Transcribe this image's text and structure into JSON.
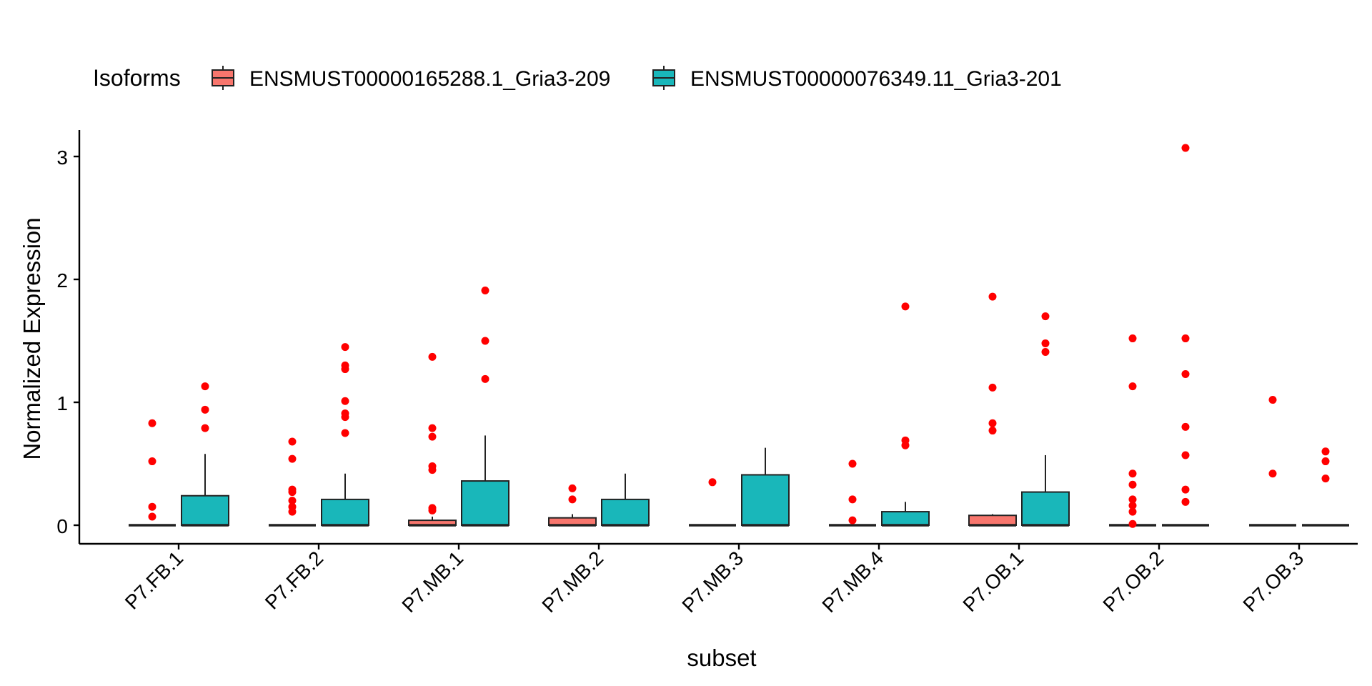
{
  "chart_data": {
    "type": "boxplot",
    "xlabel": "subset",
    "ylabel": "Normalized Expression",
    "ylim": [
      -0.15,
      3.25
    ],
    "yticks": [
      0,
      1,
      2,
      3
    ],
    "legend": {
      "title": "Isoforms",
      "position": "top"
    },
    "categories": [
      "P7.FB.1",
      "P7.FB.2",
      "P7.MB.1",
      "P7.MB.2",
      "P7.MB.3",
      "P7.MB.4",
      "P7.OB.1",
      "P7.OB.2",
      "P7.OB.3"
    ],
    "outlier_color": "#ff0000",
    "series": [
      {
        "name": "ENSMUST00000165288.1_Gria3-209",
        "color": "#f8766d",
        "boxes": [
          {
            "min": 0,
            "q1": 0,
            "median": 0,
            "q3": 0,
            "max": 0,
            "outliers": [
              0.83,
              0.52,
              0.15,
              0.07
            ]
          },
          {
            "min": 0,
            "q1": 0,
            "median": 0,
            "q3": 0,
            "max": 0,
            "outliers": [
              0.68,
              0.54,
              0.29,
              0.27,
              0.2,
              0.15,
              0.11
            ]
          },
          {
            "min": 0,
            "q1": 0,
            "median": 0,
            "q3": 0.04,
            "max": 0.07,
            "outliers": [
              1.37,
              0.79,
              0.72,
              0.48,
              0.45,
              0.14,
              0.12
            ]
          },
          {
            "min": 0,
            "q1": 0,
            "median": 0,
            "q3": 0.06,
            "max": 0.09,
            "outliers": [
              0.3,
              0.21
            ]
          },
          {
            "min": 0,
            "q1": 0,
            "median": 0,
            "q3": 0,
            "max": 0,
            "outliers": [
              0.35
            ]
          },
          {
            "min": 0,
            "q1": 0,
            "median": 0,
            "q3": 0,
            "max": 0,
            "outliers": [
              0.5,
              0.21,
              0.04
            ]
          },
          {
            "min": 0,
            "q1": 0,
            "median": 0,
            "q3": 0.08,
            "max": 0.09,
            "outliers": [
              1.86,
              1.12,
              0.83,
              0.77
            ]
          },
          {
            "min": 0,
            "q1": 0,
            "median": 0,
            "q3": 0,
            "max": 0,
            "outliers": [
              1.52,
              1.13,
              0.42,
              0.33,
              0.21,
              0.16,
              0.11,
              0.01
            ]
          },
          {
            "min": 0,
            "q1": 0,
            "median": 0,
            "q3": 0,
            "max": 0,
            "outliers": [
              1.02,
              0.42
            ]
          }
        ]
      },
      {
        "name": "ENSMUST00000076349.11_Gria3-201",
        "color": "#19b7ba",
        "boxes": [
          {
            "min": 0,
            "q1": 0,
            "median": 0,
            "q3": 0.24,
            "max": 0.58,
            "outliers": [
              1.13,
              0.94,
              0.79
            ]
          },
          {
            "min": 0,
            "q1": 0,
            "median": 0,
            "q3": 0.21,
            "max": 0.42,
            "outliers": [
              1.45,
              1.3,
              1.27,
              1.01,
              0.91,
              0.88,
              0.75
            ]
          },
          {
            "min": 0,
            "q1": 0,
            "median": 0,
            "q3": 0.36,
            "max": 0.73,
            "outliers": [
              1.91,
              1.5,
              1.19
            ]
          },
          {
            "min": 0,
            "q1": 0,
            "median": 0,
            "q3": 0.21,
            "max": 0.42,
            "outliers": []
          },
          {
            "min": 0,
            "q1": 0,
            "median": 0,
            "q3": 0.41,
            "max": 0.63,
            "outliers": []
          },
          {
            "min": 0,
            "q1": 0,
            "median": 0,
            "q3": 0.11,
            "max": 0.19,
            "outliers": [
              1.78,
              0.69,
              0.65
            ]
          },
          {
            "min": 0,
            "q1": 0,
            "median": 0,
            "q3": 0.27,
            "max": 0.57,
            "outliers": [
              1.7,
              1.48,
              1.41
            ]
          },
          {
            "min": 0,
            "q1": 0,
            "median": 0,
            "q3": 0,
            "max": 0,
            "outliers": [
              3.07,
              1.52,
              1.23,
              0.8,
              0.57,
              0.29,
              0.19
            ]
          },
          {
            "min": 0,
            "q1": 0,
            "median": 0,
            "q3": 0,
            "max": 0,
            "outliers": [
              0.6,
              0.52,
              0.38
            ]
          }
        ]
      }
    ]
  }
}
